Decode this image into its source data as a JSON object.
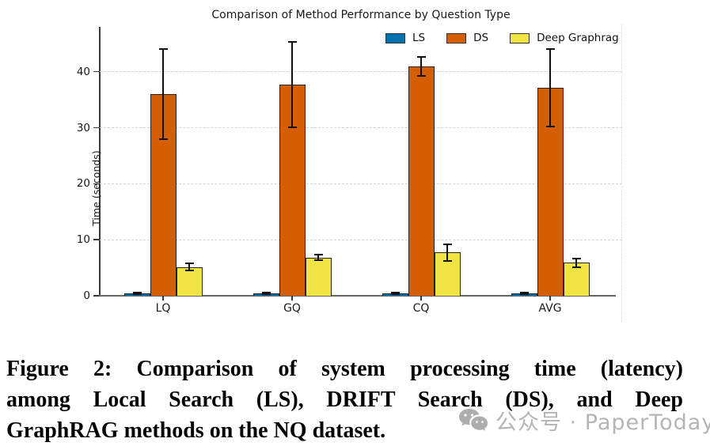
{
  "chart_data": {
    "type": "bar",
    "title": "Comparison of Method Performance by Question Type",
    "ylabel": "Time (seconds)",
    "xlabel": "",
    "categories": [
      "LQ",
      "GQ",
      "CQ",
      "AVG"
    ],
    "series": [
      {
        "name": "LS",
        "color": "#0072B2",
        "values": [
          0.4,
          0.4,
          0.45,
          0.4
        ],
        "errors": [
          0.15,
          0.12,
          0.12,
          0.12
        ]
      },
      {
        "name": "DS",
        "color": "#D55E00",
        "values": [
          36.0,
          37.7,
          41.0,
          37.1
        ],
        "errors": [
          8.0,
          7.6,
          1.7,
          6.9
        ]
      },
      {
        "name": "Deep Graphrag",
        "color": "#F0E442",
        "values": [
          5.1,
          6.8,
          7.7,
          5.9
        ],
        "errors": [
          0.65,
          0.5,
          1.5,
          0.75
        ]
      }
    ],
    "ylim": [
      0,
      48
    ],
    "yticks": [
      0,
      10,
      20,
      30,
      40
    ],
    "grid": "horizontal-dashed",
    "legend_position": "top",
    "error_bars": true
  },
  "caption": {
    "line1": "Figure 2: Comparison of system processing time (latency)",
    "line2": "among Local Search (LS), DRIFT Search (DS), and Deep",
    "line3": "GraphRAG methods on the NQ dataset."
  },
  "watermark": {
    "text": "公众号 · PaperToday",
    "icon": "wechat-icon",
    "color": "#b5b5b5"
  }
}
